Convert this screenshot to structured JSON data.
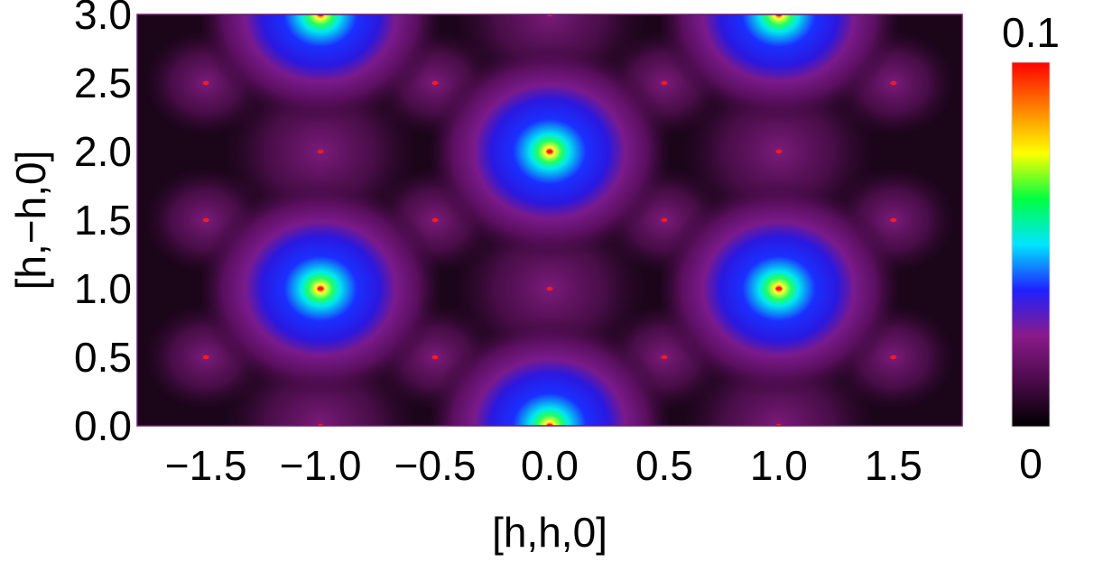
{
  "chart_data": {
    "type": "heatmap",
    "title": "",
    "xlabel": "[h,h,0]",
    "ylabel": "[h,−h,0]",
    "xlim": [
      -1.8,
      1.8
    ],
    "ylim": [
      0.0,
      3.0
    ],
    "x_ticks": [
      -1.5,
      -1.0,
      -0.5,
      0.0,
      0.5,
      1.0,
      1.5
    ],
    "x_tick_labels": [
      "−1.5",
      "−1.0",
      "−0.5",
      "0.0",
      "0.5",
      "1.0",
      "1.5"
    ],
    "y_ticks": [
      0.0,
      0.5,
      1.0,
      1.5,
      2.0,
      2.5,
      3.0
    ],
    "y_tick_labels": [
      "0.0",
      "0.5",
      "1.0",
      "1.5",
      "2.0",
      "2.5",
      "3.0"
    ],
    "colorbar": {
      "min": 0,
      "max": 0.1,
      "min_label": "0",
      "max_label": "0.1",
      "colors": [
        "#000000",
        "#4a0a4a",
        "#8a1a8a",
        "#2020ff",
        "#00e5ff",
        "#00ff40",
        "#ffff00",
        "#ff8000",
        "#ff0000"
      ]
    },
    "background_color": "#1a0519",
    "peaks": [
      {
        "x": 0.0,
        "y": 0.0,
        "value": 0.1
      },
      {
        "x": -1.0,
        "y": 1.0,
        "value": 0.1
      },
      {
        "x": 1.0,
        "y": 1.0,
        "value": 0.1
      },
      {
        "x": 0.0,
        "y": 2.0,
        "value": 0.1
      },
      {
        "x": -1.0,
        "y": 3.0,
        "value": 0.1
      },
      {
        "x": 1.0,
        "y": 3.0,
        "value": 0.1
      }
    ],
    "bragg_points": [
      {
        "x": 0.0,
        "y": 0.0
      },
      {
        "x": -1.0,
        "y": 0.0
      },
      {
        "x": 1.0,
        "y": 0.0
      },
      {
        "x": -1.5,
        "y": 0.5
      },
      {
        "x": -0.5,
        "y": 0.5
      },
      {
        "x": 0.5,
        "y": 0.5
      },
      {
        "x": 1.5,
        "y": 0.5
      },
      {
        "x": -1.0,
        "y": 1.0
      },
      {
        "x": 0.0,
        "y": 1.0
      },
      {
        "x": 1.0,
        "y": 1.0
      },
      {
        "x": -1.5,
        "y": 1.5
      },
      {
        "x": -0.5,
        "y": 1.5
      },
      {
        "x": 0.5,
        "y": 1.5
      },
      {
        "x": 1.5,
        "y": 1.5
      },
      {
        "x": -1.0,
        "y": 2.0
      },
      {
        "x": 0.0,
        "y": 2.0
      },
      {
        "x": 1.0,
        "y": 2.0
      },
      {
        "x": -1.5,
        "y": 2.5
      },
      {
        "x": -0.5,
        "y": 2.5
      },
      {
        "x": 0.5,
        "y": 2.5
      },
      {
        "x": 1.5,
        "y": 2.5
      },
      {
        "x": -1.0,
        "y": 3.0
      },
      {
        "x": 0.0,
        "y": 3.0
      },
      {
        "x": 1.0,
        "y": 3.0
      }
    ],
    "bragg_color": "#ff1a1a",
    "grid": false,
    "legend": "colorbar-right"
  }
}
